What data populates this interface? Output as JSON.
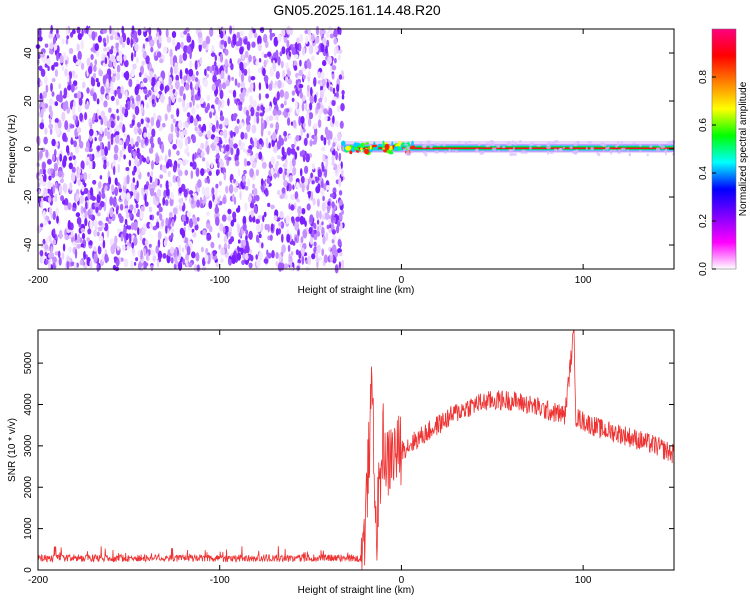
{
  "title": "GN05.2025.161.14.48.R20",
  "chart_data": [
    {
      "type": "heatmap",
      "xlabel": "Height of straight line (km)",
      "ylabel": "Frequency (Hz)",
      "xlim": [
        -200,
        150
      ],
      "ylim": [
        -50,
        50
      ],
      "xticks": [
        "-200",
        "-100",
        "0",
        "100"
      ],
      "yticks": [
        "-40",
        "-20",
        "0",
        "20",
        "40"
      ],
      "colorbar": {
        "label": "Normalized spectral amplitude",
        "range": [
          0.0,
          1.0
        ],
        "ticks": [
          "0.0",
          "0.2",
          "0.4",
          "0.6",
          "0.8"
        ],
        "colors": [
          "#ffffff",
          "#ff00ff",
          "#7f00ff",
          "#0000ff",
          "#00ffff",
          "#00ff00",
          "#ffff00",
          "#ff8000",
          "#ff0000",
          "#ff0080"
        ]
      },
      "regions": [
        {
          "x_range": [
            -200,
            -32
          ],
          "description_level": 0.15
        },
        {
          "x_range": [
            -32,
            150
          ],
          "signal_frequency_hz": 0
        }
      ]
    },
    {
      "type": "line",
      "xlabel": "Height of straight line (km)",
      "ylabel": "SNR (10 * v/v)",
      "xlim": [
        -200,
        150
      ],
      "ylim": [
        0,
        5800
      ],
      "xticks": [
        "-200",
        "-100",
        "0",
        "100"
      ],
      "yticks": [
        "0",
        "1000",
        "2000",
        "3000",
        "4000",
        "5000"
      ],
      "color": "#ee3333",
      "series": [
        {
          "x": [
            -200,
            -150,
            -100,
            -50,
            -22,
            -20,
            -16,
            -14,
            -12,
            -10,
            -8,
            -5,
            0,
            10,
            20,
            30,
            40,
            50,
            60,
            70,
            80,
            90,
            95,
            96,
            100,
            110,
            120,
            130,
            140,
            150
          ],
          "values": [
            250,
            250,
            250,
            250,
            250,
            1000,
            4500,
            800,
            2000,
            3200,
            2500,
            2800,
            2900,
            3200,
            3500,
            3800,
            4000,
            4100,
            4100,
            4000,
            3850,
            3750,
            5800,
            3700,
            3600,
            3400,
            3300,
            3150,
            3000,
            2800
          ]
        }
      ]
    }
  ]
}
